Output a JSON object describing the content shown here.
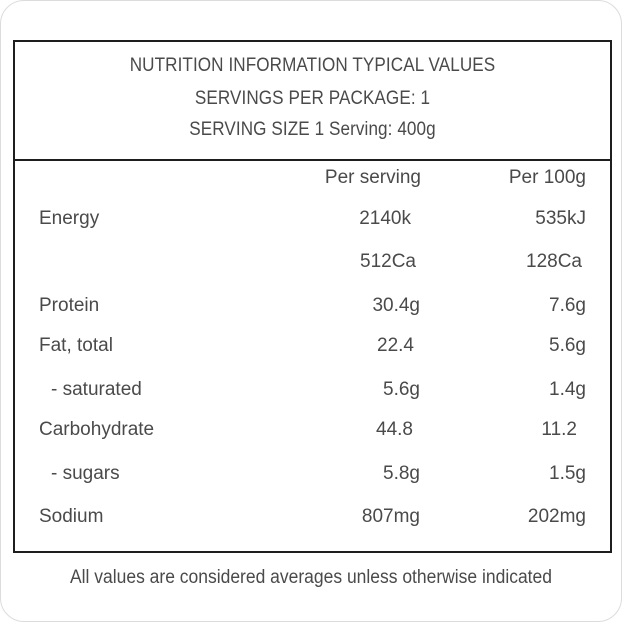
{
  "header": {
    "line1": "NUTRITION INFORMATION TYPICAL VALUES",
    "line2": "SERVINGS PER PACKAGE: 1",
    "line3": "SERVING SIZE 1 Serving: 400g"
  },
  "columns": {
    "per_serving": "Per serving",
    "per_100g": "Per 100g"
  },
  "rows": [
    {
      "label": "Energy",
      "per_serving": "2140k",
      "per_100g": "535kJ"
    },
    {
      "label": "",
      "per_serving": "512Ca",
      "per_100g": "128Ca"
    },
    {
      "label": "Protein",
      "per_serving": "30.4g",
      "per_100g": "7.6g"
    },
    {
      "label": "Fat, total",
      "per_serving": "22.4",
      "per_100g": "5.6g"
    },
    {
      "label": "- saturated",
      "per_serving": "5.6g",
      "per_100g": "1.4g"
    },
    {
      "label": "Carbohydrate",
      "per_serving": "44.8",
      "per_100g": "11.2"
    },
    {
      "label": "- sugars",
      "per_serving": "5.8g",
      "per_100g": "1.5g"
    },
    {
      "label": "Sodium",
      "per_serving": "807mg",
      "per_100g": "202mg"
    }
  ],
  "footer": "All values are considered averages unless otherwise indicated"
}
